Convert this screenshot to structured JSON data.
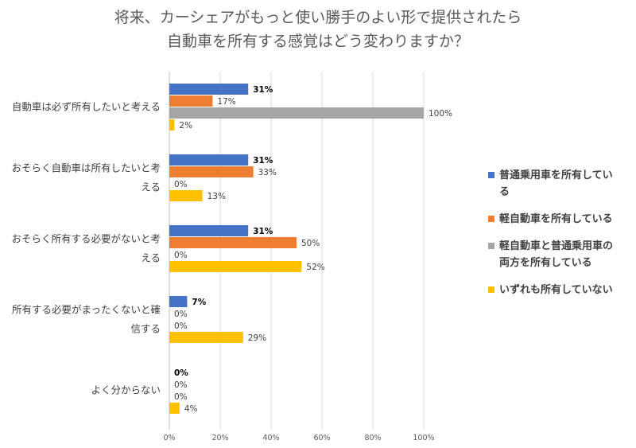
{
  "chart_data": {
    "type": "bar",
    "orientation": "horizontal",
    "title": [
      "将来、カーシェアがもっと使い勝手のよい形で提供されたら",
      "自動車を所有する感覚はどう変わりますか？"
    ],
    "categories": [
      [
        "自動車は必ず所有したいと考える"
      ],
      [
        "おそらく自動車は所有したいと考",
        "える"
      ],
      [
        "おそらく所有する必要がないと考",
        "える"
      ],
      [
        "所有する必要がまったくないと確",
        "信する"
      ],
      [
        "よく分からない"
      ]
    ],
    "series": [
      {
        "name": "普通乗用車を所有している",
        "legend_lines": [
          "普通乗用車を所有してい",
          "る"
        ],
        "color": "#4472c4",
        "values": [
          31,
          31,
          31,
          7,
          0
        ],
        "labels": [
          "31%",
          "31%",
          "31%",
          "7%",
          "0%"
        ]
      },
      {
        "name": "軽自動車を所有している",
        "legend_lines": [
          "軽自動車を所有している"
        ],
        "color": "#ed7d31",
        "values": [
          17,
          33,
          50,
          0,
          0
        ],
        "labels": [
          "17%",
          "33%",
          "50%",
          "0%",
          "0%"
        ]
      },
      {
        "name": "軽自動車と普通乗用車の両方を所有している",
        "legend_lines": [
          "軽自動車と普通乗用車の",
          "両方を所有している"
        ],
        "color": "#a5a5a5",
        "values": [
          100,
          0,
          0,
          0,
          0
        ],
        "labels": [
          "100%",
          "0%",
          "0%",
          "0%",
          "0%"
        ]
      },
      {
        "name": "いずれも所有していない",
        "legend_lines": [
          "いずれも所有していない"
        ],
        "color": "#ffc000",
        "values": [
          2,
          13,
          52,
          29,
          4
        ],
        "labels": [
          "2%",
          "13%",
          "52%",
          "29%",
          "4%"
        ]
      }
    ],
    "xlim": [
      0,
      100
    ],
    "xticks": [
      0,
      20,
      40,
      60,
      80,
      100
    ],
    "xtick_labels": [
      "0%",
      "20%",
      "40%",
      "60%",
      "80%",
      "100%"
    ],
    "grid": true,
    "legend_position": "right"
  }
}
